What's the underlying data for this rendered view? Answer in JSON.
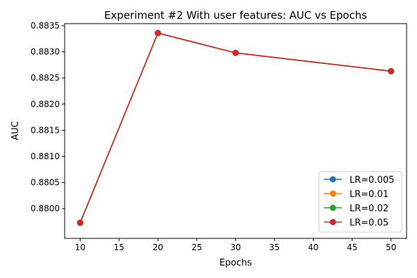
{
  "chart_data": {
    "type": "line",
    "title": "Experiment #2 With user features: AUC vs Epochs",
    "xlabel": "Epochs",
    "ylabel": "AUC",
    "x": [
      10,
      20,
      30,
      50
    ],
    "xlim": [
      8,
      52
    ],
    "ylim": [
      0.87943,
      0.88354
    ],
    "xticks": [
      10,
      15,
      20,
      25,
      30,
      35,
      40,
      45,
      50
    ],
    "yticks": [
      0.88,
      0.8805,
      0.881,
      0.8815,
      0.882,
      0.8825,
      0.883,
      0.8835
    ],
    "grid": false,
    "legend_position": "lower right",
    "series": [
      {
        "name": "LR=0.005",
        "color": "#1f77b4",
        "values": [
          0.87973,
          0.88336,
          0.88298,
          0.88263
        ]
      },
      {
        "name": "LR=0.01",
        "color": "#ff7f0e",
        "values": [
          0.87973,
          0.88336,
          0.88298,
          0.88263
        ]
      },
      {
        "name": "LR=0.02",
        "color": "#2ca02c",
        "values": [
          0.87973,
          0.88336,
          0.88298,
          0.88263
        ]
      },
      {
        "name": "LR=0.05",
        "color": "#d62728",
        "values": [
          0.87973,
          0.88336,
          0.88298,
          0.88263
        ]
      }
    ]
  }
}
